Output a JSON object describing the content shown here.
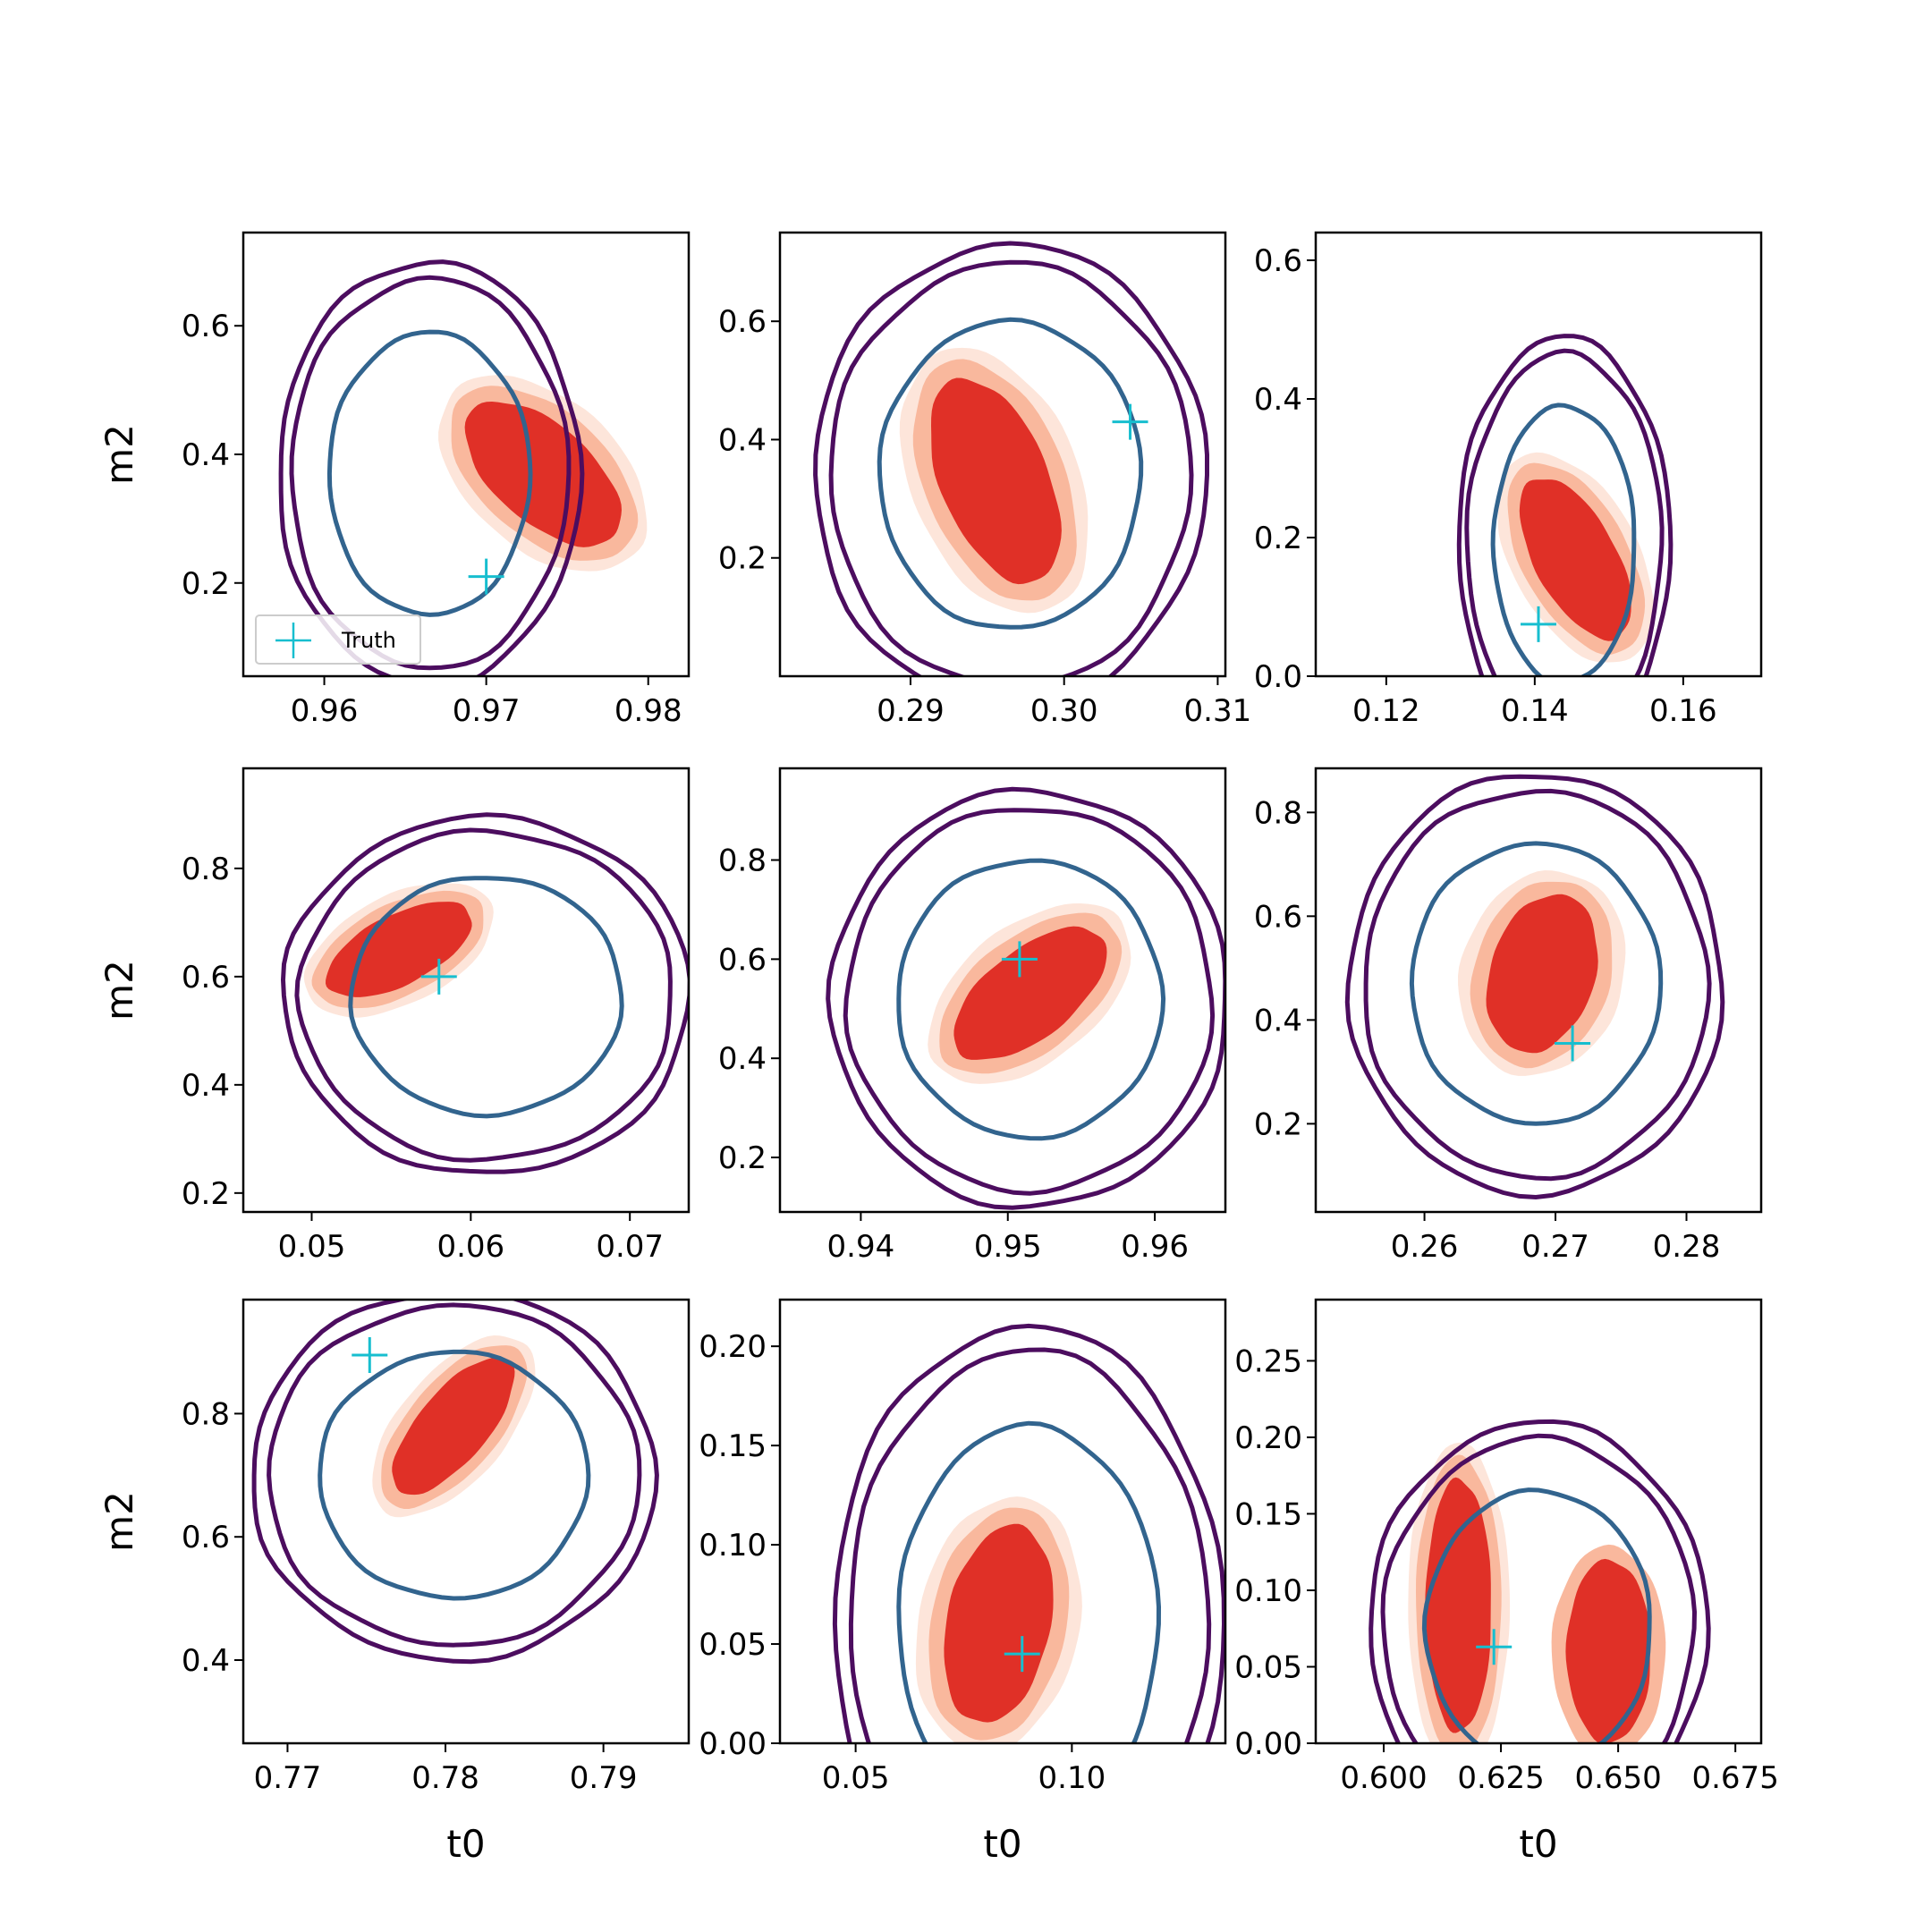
{
  "figure": {
    "legend_label": "Truth"
  },
  "chart_data": [
    {
      "type": "scatter",
      "xlabel": "",
      "ylabel": "m2",
      "xlim": [
        0.955,
        0.9825
      ],
      "ylim": [
        0.055,
        0.745
      ],
      "xticks": [
        {
          "v": 0.96,
          "l": "0.96"
        },
        {
          "v": 0.97,
          "l": "0.97"
        },
        {
          "v": 0.98,
          "l": "0.98"
        }
      ],
      "yticks": [
        {
          "v": 0.2,
          "l": "0.2"
        },
        {
          "v": 0.4,
          "l": "0.4"
        },
        {
          "v": 0.6,
          "l": "0.6"
        }
      ],
      "truth": {
        "x": 0.97,
        "y": 0.21
      },
      "legend": "bottom-left",
      "red": {
        "cx": 0.9735,
        "cy": 0.37,
        "rx": 0.003,
        "ry": 0.16,
        "tilt": 0.85
      },
      "blue": {
        "cx": 0.9665,
        "cy": 0.37,
        "rx": 0.0062,
        "ry": 0.22
      }
    },
    {
      "type": "scatter",
      "xlabel": "",
      "ylabel": "",
      "xlim": [
        0.2815,
        0.3105
      ],
      "ylim": [
        0.0,
        0.75
      ],
      "xticks": [
        {
          "v": 0.29,
          "l": "0.29"
        },
        {
          "v": 0.3,
          "l": "0.30"
        },
        {
          "v": 0.31,
          "l": "0.31"
        }
      ],
      "yticks": [
        {
          "v": 0.2,
          "l": "0.2"
        },
        {
          "v": 0.4,
          "l": "0.4"
        },
        {
          "v": 0.6,
          "l": "0.6"
        }
      ],
      "truth": {
        "x": 0.3043,
        "y": 0.43
      },
      "red": {
        "cx": 0.2955,
        "cy": 0.33,
        "rx": 0.0035,
        "ry": 0.2,
        "tilt": 0.4
      },
      "blue": {
        "cx": 0.2965,
        "cy": 0.34,
        "rx": 0.0085,
        "ry": 0.26
      }
    },
    {
      "type": "scatter",
      "xlabel": "",
      "ylabel": "",
      "xlim": [
        0.1105,
        0.1705
      ],
      "ylim": [
        0.0,
        0.64
      ],
      "xticks": [
        {
          "v": 0.12,
          "l": "0.12"
        },
        {
          "v": 0.14,
          "l": "0.14"
        },
        {
          "v": 0.16,
          "l": "0.16"
        }
      ],
      "yticks": [
        {
          "v": 0.0,
          "l": "0.0"
        },
        {
          "v": 0.2,
          "l": "0.2"
        },
        {
          "v": 0.4,
          "l": "0.4"
        },
        {
          "v": 0.6,
          "l": "0.6"
        }
      ],
      "truth": {
        "x": 0.1405,
        "y": 0.075
      },
      "red": {
        "cx": 0.1455,
        "cy": 0.17,
        "rx": 0.0055,
        "ry": 0.14,
        "tilt": 0.5
      },
      "blue": {
        "cx": 0.144,
        "cy": 0.19,
        "rx": 0.0095,
        "ry": 0.2
      }
    },
    {
      "type": "scatter",
      "xlabel": "",
      "ylabel": "m2",
      "xlim": [
        0.0457,
        0.0737
      ],
      "ylim": [
        0.165,
        0.985
      ],
      "xticks": [
        {
          "v": 0.05,
          "l": "0.05"
        },
        {
          "v": 0.06,
          "l": "0.06"
        },
        {
          "v": 0.07,
          "l": "0.07"
        }
      ],
      "yticks": [
        {
          "v": 0.2,
          "l": "0.2"
        },
        {
          "v": 0.4,
          "l": "0.4"
        },
        {
          "v": 0.6,
          "l": "0.6"
        },
        {
          "v": 0.8,
          "l": "0.8"
        }
      ],
      "truth": {
        "x": 0.058,
        "y": 0.6
      },
      "red": {
        "cx": 0.0555,
        "cy": 0.65,
        "rx": 0.0022,
        "ry": 0.16,
        "tilt": -1.1
      },
      "blue": {
        "cx": 0.061,
        "cy": 0.565,
        "rx": 0.0085,
        "ry": 0.22
      }
    },
    {
      "type": "scatter",
      "xlabel": "",
      "ylabel": "",
      "xlim": [
        0.9345,
        0.9648
      ],
      "ylim": [
        0.09,
        0.985
      ],
      "xticks": [
        {
          "v": 0.94,
          "l": "0.94"
        },
        {
          "v": 0.95,
          "l": "0.95"
        },
        {
          "v": 0.96,
          "l": "0.96"
        }
      ],
      "yticks": [
        {
          "v": 0.2,
          "l": "0.2"
        },
        {
          "v": 0.4,
          "l": "0.4"
        },
        {
          "v": 0.6,
          "l": "0.6"
        },
        {
          "v": 0.8,
          "l": "0.8"
        }
      ],
      "truth": {
        "x": 0.9508,
        "y": 0.6
      },
      "red": {
        "cx": 0.9515,
        "cy": 0.53,
        "rx": 0.003,
        "ry": 0.2,
        "tilt": -0.9
      },
      "blue": {
        "cx": 0.9515,
        "cy": 0.52,
        "rx": 0.009,
        "ry": 0.28
      }
    },
    {
      "type": "scatter",
      "xlabel": "",
      "ylabel": "",
      "xlim": [
        0.2517,
        0.2857
      ],
      "ylim": [
        0.03,
        0.885
      ],
      "xticks": [
        {
          "v": 0.26,
          "l": "0.26"
        },
        {
          "v": 0.27,
          "l": "0.27"
        },
        {
          "v": 0.28,
          "l": "0.28"
        }
      ],
      "yticks": [
        {
          "v": 0.2,
          "l": "0.2"
        },
        {
          "v": 0.4,
          "l": "0.4"
        },
        {
          "v": 0.6,
          "l": "0.6"
        },
        {
          "v": 0.8,
          "l": "0.8"
        }
      ],
      "truth": {
        "x": 0.2713,
        "y": 0.355
      },
      "red": {
        "cx": 0.269,
        "cy": 0.49,
        "rx": 0.004,
        "ry": 0.17,
        "tilt": -0.3
      },
      "blue": {
        "cx": 0.2685,
        "cy": 0.47,
        "rx": 0.0095,
        "ry": 0.27
      }
    },
    {
      "type": "scatter",
      "xlabel": "t0",
      "ylabel": "m2",
      "xlim": [
        0.7672,
        0.7954
      ],
      "ylim": [
        0.265,
        0.985
      ],
      "xticks": [
        {
          "v": 0.77,
          "l": "0.77"
        },
        {
          "v": 0.78,
          "l": "0.78"
        },
        {
          "v": 0.79,
          "l": "0.79"
        }
      ],
      "yticks": [
        {
          "v": 0.4,
          "l": "0.4"
        },
        {
          "v": 0.6,
          "l": "0.6"
        },
        {
          "v": 0.8,
          "l": "0.8"
        }
      ],
      "truth": {
        "x": 0.7752,
        "y": 0.895
      },
      "red": {
        "cx": 0.7805,
        "cy": 0.78,
        "rx": 0.0022,
        "ry": 0.15,
        "tilt": -0.7
      },
      "blue": {
        "cx": 0.7805,
        "cy": 0.7,
        "rx": 0.0085,
        "ry": 0.2
      }
    },
    {
      "type": "scatter",
      "xlabel": "t0",
      "ylabel": "",
      "xlim": [
        0.0325,
        0.1355
      ],
      "ylim": [
        0.0,
        0.2235
      ],
      "xticks": [
        {
          "v": 0.05,
          "l": "0.05"
        },
        {
          "v": 0.1,
          "l": "0.10"
        }
      ],
      "yticks": [
        {
          "v": 0.0,
          "l": "0.00"
        },
        {
          "v": 0.05,
          "l": "0.05"
        },
        {
          "v": 0.1,
          "l": "0.10"
        },
        {
          "v": 0.15,
          "l": "0.15"
        },
        {
          "v": 0.2,
          "l": "0.20"
        }
      ],
      "truth": {
        "x": 0.0885,
        "y": 0.045
      },
      "red": {
        "cx": 0.083,
        "cy": 0.06,
        "rx": 0.012,
        "ry": 0.055,
        "tilt": -0.2
      },
      "blue": {
        "cx": 0.09,
        "cy": 0.06,
        "rx": 0.03,
        "ry": 0.1
      }
    },
    {
      "type": "scatter",
      "xlabel": "t0",
      "ylabel": "",
      "xlim": [
        0.5855,
        0.6805
      ],
      "ylim": [
        0.0,
        0.29
      ],
      "xticks": [
        {
          "v": 0.6,
          "l": "0.600"
        },
        {
          "v": 0.625,
          "l": "0.625"
        },
        {
          "v": 0.65,
          "l": "0.650"
        },
        {
          "v": 0.675,
          "l": "0.675"
        }
      ],
      "yticks": [
        {
          "v": 0.0,
          "l": "0.00"
        },
        {
          "v": 0.05,
          "l": "0.05"
        },
        {
          "v": 0.1,
          "l": "0.10"
        },
        {
          "v": 0.15,
          "l": "0.15"
        },
        {
          "v": 0.2,
          "l": "0.20"
        },
        {
          "v": 0.25,
          "l": "0.25"
        }
      ],
      "truth": {
        "x": 0.6235,
        "y": 0.063
      },
      "red": {
        "cx": 0.616,
        "cy": 0.09,
        "rx": 0.007,
        "ry": 0.09,
        "tilt": 0.0
      },
      "red2": {
        "cx": 0.648,
        "cy": 0.06,
        "rx": 0.009,
        "ry": 0.06
      },
      "blue": {
        "cx": 0.633,
        "cy": 0.075,
        "rx": 0.024,
        "ry": 0.09
      }
    }
  ]
}
